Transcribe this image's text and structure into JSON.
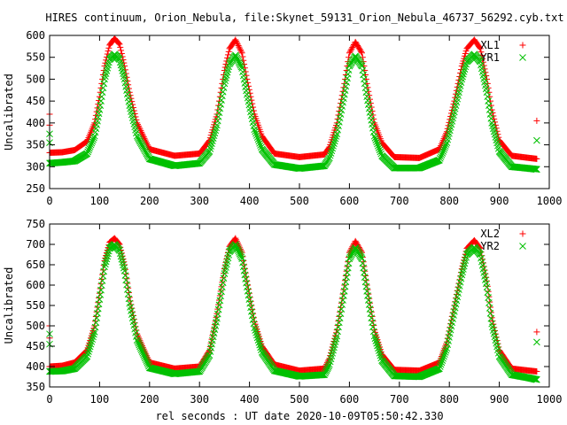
{
  "title": "HIRES continuum, Orion_Nebula, file:Skynet_59131_Orion_Nebula_46737_56292.cyb.txt",
  "xlabel": "rel seconds : UT date 2020-10-09T05:50:42.330",
  "colors": {
    "red": "#ff0000",
    "green": "#00c000"
  },
  "chart_data": [
    {
      "type": "scatter",
      "ylabel": "Uncalibrated",
      "xlim": [
        0,
        1000
      ],
      "ylim": [
        250,
        600
      ],
      "xticks": [
        0,
        100,
        200,
        300,
        400,
        500,
        600,
        700,
        800,
        900,
        1000
      ],
      "yticks": [
        250,
        300,
        350,
        400,
        450,
        500,
        550,
        600
      ],
      "grid": false,
      "legend": "top-right",
      "series": [
        {
          "name": "XL1",
          "marker": "plus",
          "color": "#ff0000",
          "x": [
            0,
            25,
            50,
            75,
            90,
            100,
            110,
            120,
            130,
            140,
            150,
            160,
            175,
            200,
            250,
            300,
            320,
            335,
            350,
            360,
            372,
            385,
            395,
            410,
            425,
            450,
            500,
            550,
            560,
            575,
            590,
            600,
            612,
            625,
            635,
            650,
            665,
            690,
            740,
            780,
            795,
            810,
            825,
            835,
            850,
            862,
            875,
            885,
            900,
            925,
            960,
            975
          ],
          "y": [
            332,
            333,
            338,
            358,
            400,
            460,
            530,
            578,
            593,
            580,
            530,
            470,
            400,
            340,
            325,
            330,
            360,
            420,
            520,
            570,
            590,
            560,
            500,
            420,
            370,
            330,
            322,
            328,
            345,
            400,
            490,
            560,
            585,
            560,
            490,
            400,
            355,
            322,
            320,
            340,
            380,
            450,
            530,
            570,
            590,
            570,
            500,
            430,
            360,
            325,
            320,
            318
          ]
        },
        {
          "name": "YR1",
          "marker": "cross",
          "color": "#00c000",
          "x": [
            0,
            25,
            50,
            75,
            90,
            100,
            110,
            120,
            130,
            140,
            150,
            160,
            175,
            200,
            250,
            300,
            320,
            335,
            350,
            360,
            372,
            385,
            395,
            410,
            425,
            450,
            500,
            550,
            560,
            575,
            590,
            600,
            612,
            625,
            635,
            650,
            665,
            690,
            740,
            780,
            795,
            810,
            825,
            835,
            850,
            862,
            875,
            885,
            900,
            925,
            960,
            975
          ],
          "y": [
            308,
            310,
            313,
            330,
            370,
            430,
            500,
            545,
            557,
            545,
            500,
            440,
            370,
            318,
            302,
            308,
            335,
            395,
            490,
            535,
            555,
            525,
            465,
            385,
            340,
            305,
            296,
            302,
            320,
            375,
            465,
            530,
            553,
            530,
            460,
            370,
            325,
            297,
            297,
            315,
            355,
            425,
            500,
            540,
            557,
            540,
            470,
            400,
            335,
            300,
            296,
            294
          ]
        }
      ],
      "extra_points": [
        {
          "x": 0,
          "y": 420,
          "series": "XL1"
        },
        {
          "x": 0,
          "y": 395,
          "series": "XL1"
        },
        {
          "x": 0,
          "y": 375,
          "series": "YR1"
        },
        {
          "x": 0,
          "y": 355,
          "series": "YR1"
        },
        {
          "x": 975,
          "y": 405,
          "series": "XL1"
        },
        {
          "x": 975,
          "y": 360,
          "series": "YR1"
        }
      ]
    },
    {
      "type": "scatter",
      "ylabel": "Uncalibrated",
      "xlim": [
        0,
        1000
      ],
      "ylim": [
        350,
        750
      ],
      "xticks": [
        0,
        100,
        200,
        300,
        400,
        500,
        600,
        700,
        800,
        900,
        1000
      ],
      "yticks": [
        350,
        400,
        450,
        500,
        550,
        600,
        650,
        700,
        750
      ],
      "grid": false,
      "legend": "top-right",
      "series": [
        {
          "name": "XL2",
          "marker": "plus",
          "color": "#ff0000",
          "x": [
            0,
            25,
            50,
            75,
            90,
            100,
            110,
            120,
            130,
            140,
            150,
            160,
            175,
            200,
            250,
            300,
            320,
            335,
            350,
            360,
            372,
            385,
            395,
            410,
            425,
            450,
            500,
            550,
            560,
            575,
            590,
            600,
            612,
            625,
            635,
            650,
            665,
            690,
            740,
            780,
            795,
            810,
            825,
            835,
            850,
            862,
            875,
            885,
            900,
            925,
            960,
            975
          ],
          "y": [
            400,
            402,
            410,
            440,
            500,
            580,
            660,
            705,
            715,
            700,
            650,
            570,
            480,
            410,
            395,
            400,
            440,
            530,
            640,
            695,
            715,
            680,
            610,
            510,
            450,
            405,
            390,
            395,
            420,
            490,
            600,
            680,
            708,
            680,
            600,
            490,
            430,
            392,
            390,
            410,
            460,
            550,
            640,
            690,
            710,
            690,
            610,
            520,
            440,
            395,
            390,
            388
          ]
        },
        {
          "name": "YR2",
          "marker": "cross",
          "color": "#00c000",
          "x": [
            0,
            25,
            50,
            75,
            90,
            100,
            110,
            120,
            130,
            140,
            150,
            160,
            175,
            200,
            250,
            300,
            320,
            335,
            350,
            360,
            372,
            385,
            395,
            410,
            425,
            450,
            500,
            550,
            560,
            575,
            590,
            600,
            612,
            625,
            635,
            650,
            665,
            690,
            740,
            780,
            795,
            810,
            825,
            835,
            850,
            862,
            875,
            885,
            900,
            925,
            960,
            975
          ],
          "y": [
            388,
            389,
            395,
            425,
            485,
            565,
            645,
            690,
            700,
            685,
            635,
            555,
            465,
            397,
            382,
            388,
            428,
            518,
            628,
            682,
            700,
            665,
            595,
            495,
            435,
            390,
            376,
            380,
            405,
            475,
            585,
            665,
            692,
            665,
            585,
            475,
            415,
            377,
            375,
            395,
            445,
            535,
            625,
            675,
            693,
            675,
            595,
            505,
            425,
            380,
            372,
            368
          ]
        }
      ],
      "extra_points": [
        {
          "x": 0,
          "y": 500,
          "series": "XL2"
        },
        {
          "x": 0,
          "y": 470,
          "series": "XL2"
        },
        {
          "x": 0,
          "y": 480,
          "series": "YR2"
        },
        {
          "x": 0,
          "y": 455,
          "series": "YR2"
        },
        {
          "x": 975,
          "y": 485,
          "series": "XL2"
        },
        {
          "x": 975,
          "y": 460,
          "series": "YR2"
        }
      ]
    }
  ]
}
